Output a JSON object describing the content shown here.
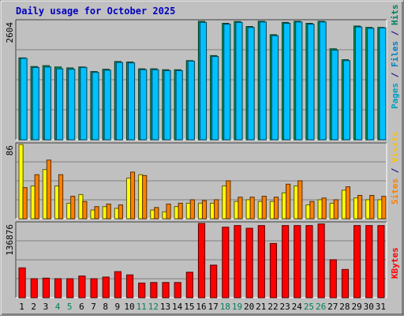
{
  "chart_data": {
    "type": "bar",
    "title": "Daily usage for October 2025",
    "categories": [
      "1",
      "2",
      "3",
      "4",
      "5",
      "6",
      "7",
      "8",
      "9",
      "10",
      "11",
      "12",
      "13",
      "14",
      "15",
      "16",
      "17",
      "18",
      "19",
      "20",
      "21",
      "22",
      "23",
      "24",
      "25",
      "26",
      "27",
      "28",
      "29",
      "30",
      "31"
    ],
    "weekend_days": [
      "4",
      "5",
      "11",
      "12",
      "18",
      "19",
      "25",
      "26"
    ],
    "panels": [
      {
        "id": "hits",
        "ylabel": [
          {
            "text": "Pages",
            "color": "#00a0c0"
          },
          {
            "text": " / ",
            "color": "#000080"
          },
          {
            "text": "Files",
            "color": "#0080c0"
          },
          {
            "text": " / ",
            "color": "#000080"
          },
          {
            "text": "Hits",
            "color": "#008060"
          }
        ],
        "ylim": [
          0,
          2604
        ],
        "ytick": "2604",
        "series": [
          {
            "name": "Hits",
            "color": "#00a060",
            "values": [
              1800,
              1610,
              1630,
              1600,
              1580,
              1600,
              1500,
              1550,
              1720,
              1710,
              1560,
              1560,
              1540,
              1540,
              1740,
              2604,
              1850,
              2560,
              2600,
              2490,
              2604,
              2310,
              2580,
              2604,
              2560,
              2604,
              2000,
              1760,
              2500,
              2470,
              2470
            ]
          },
          {
            "name": "Files",
            "color": "#00c0ff",
            "values": [
              1790,
              1590,
              1600,
              1560,
              1550,
              1590,
              1480,
              1530,
              1700,
              1690,
              1540,
              1540,
              1520,
              1520,
              1730,
              2580,
              1830,
              2540,
              2580,
              2470,
              2590,
              2290,
              2560,
              2590,
              2540,
              2590,
              1970,
              1740,
              2480,
              2450,
              2460
            ]
          },
          {
            "name": "Pages",
            "color": "#00a0c0",
            "values": [
              0,
              0,
              0,
              0,
              0,
              0,
              0,
              0,
              0,
              0,
              0,
              0,
              0,
              0,
              0,
              0,
              0,
              0,
              0,
              0,
              0,
              0,
              0,
              0,
              0,
              0,
              0,
              0,
              0,
              0,
              0
            ]
          }
        ]
      },
      {
        "id": "visits",
        "ylabel": [
          {
            "text": "Sites",
            "color": "#ff8000"
          },
          {
            "text": " / ",
            "color": "#000080"
          },
          {
            "text": "Visits",
            "color": "#ffc000"
          }
        ],
        "ylim": [
          0,
          86
        ],
        "ytick": "86",
        "series": [
          {
            "name": "Visits",
            "color": "#ffff00",
            "values": [
              86,
              38,
              57,
              38,
              18,
              28,
              10,
              14,
              12,
              47,
              51,
              10,
              8,
              14,
              18,
              18,
              18,
              38,
              20,
              22,
              20,
              20,
              30,
              38,
              16,
              22,
              18,
              33,
              24,
              22,
              22
            ]
          },
          {
            "name": "Sites",
            "color": "#ff8000",
            "values": [
              36,
              51,
              68,
              51,
              26,
              20,
              14,
              17,
              16,
              54,
              50,
              13,
              17,
              18,
              22,
              21,
              22,
              44,
              25,
              25,
              26,
              25,
              40,
              44,
              20,
              24,
              22,
              37,
              27,
              27,
              26
            ]
          }
        ]
      },
      {
        "id": "kbytes",
        "ylabel": [
          {
            "text": "KBytes",
            "color": "#ff0000"
          }
        ],
        "ylim": [
          0,
          136876
        ],
        "ytick": "136876",
        "series": [
          {
            "name": "KBytes",
            "color": "#ff0000",
            "values": [
              55000,
              35000,
              36000,
              35000,
              35000,
              40000,
              35000,
              38000,
              48000,
              42000,
              27000,
              28000,
              28000,
              28000,
              47000,
              136876,
              60000,
              130000,
              133000,
              128000,
              133000,
              100000,
              133000,
              133000,
              133000,
              136000,
              70000,
              52000,
              133000,
              133000,
              133000
            ]
          }
        ]
      }
    ]
  }
}
